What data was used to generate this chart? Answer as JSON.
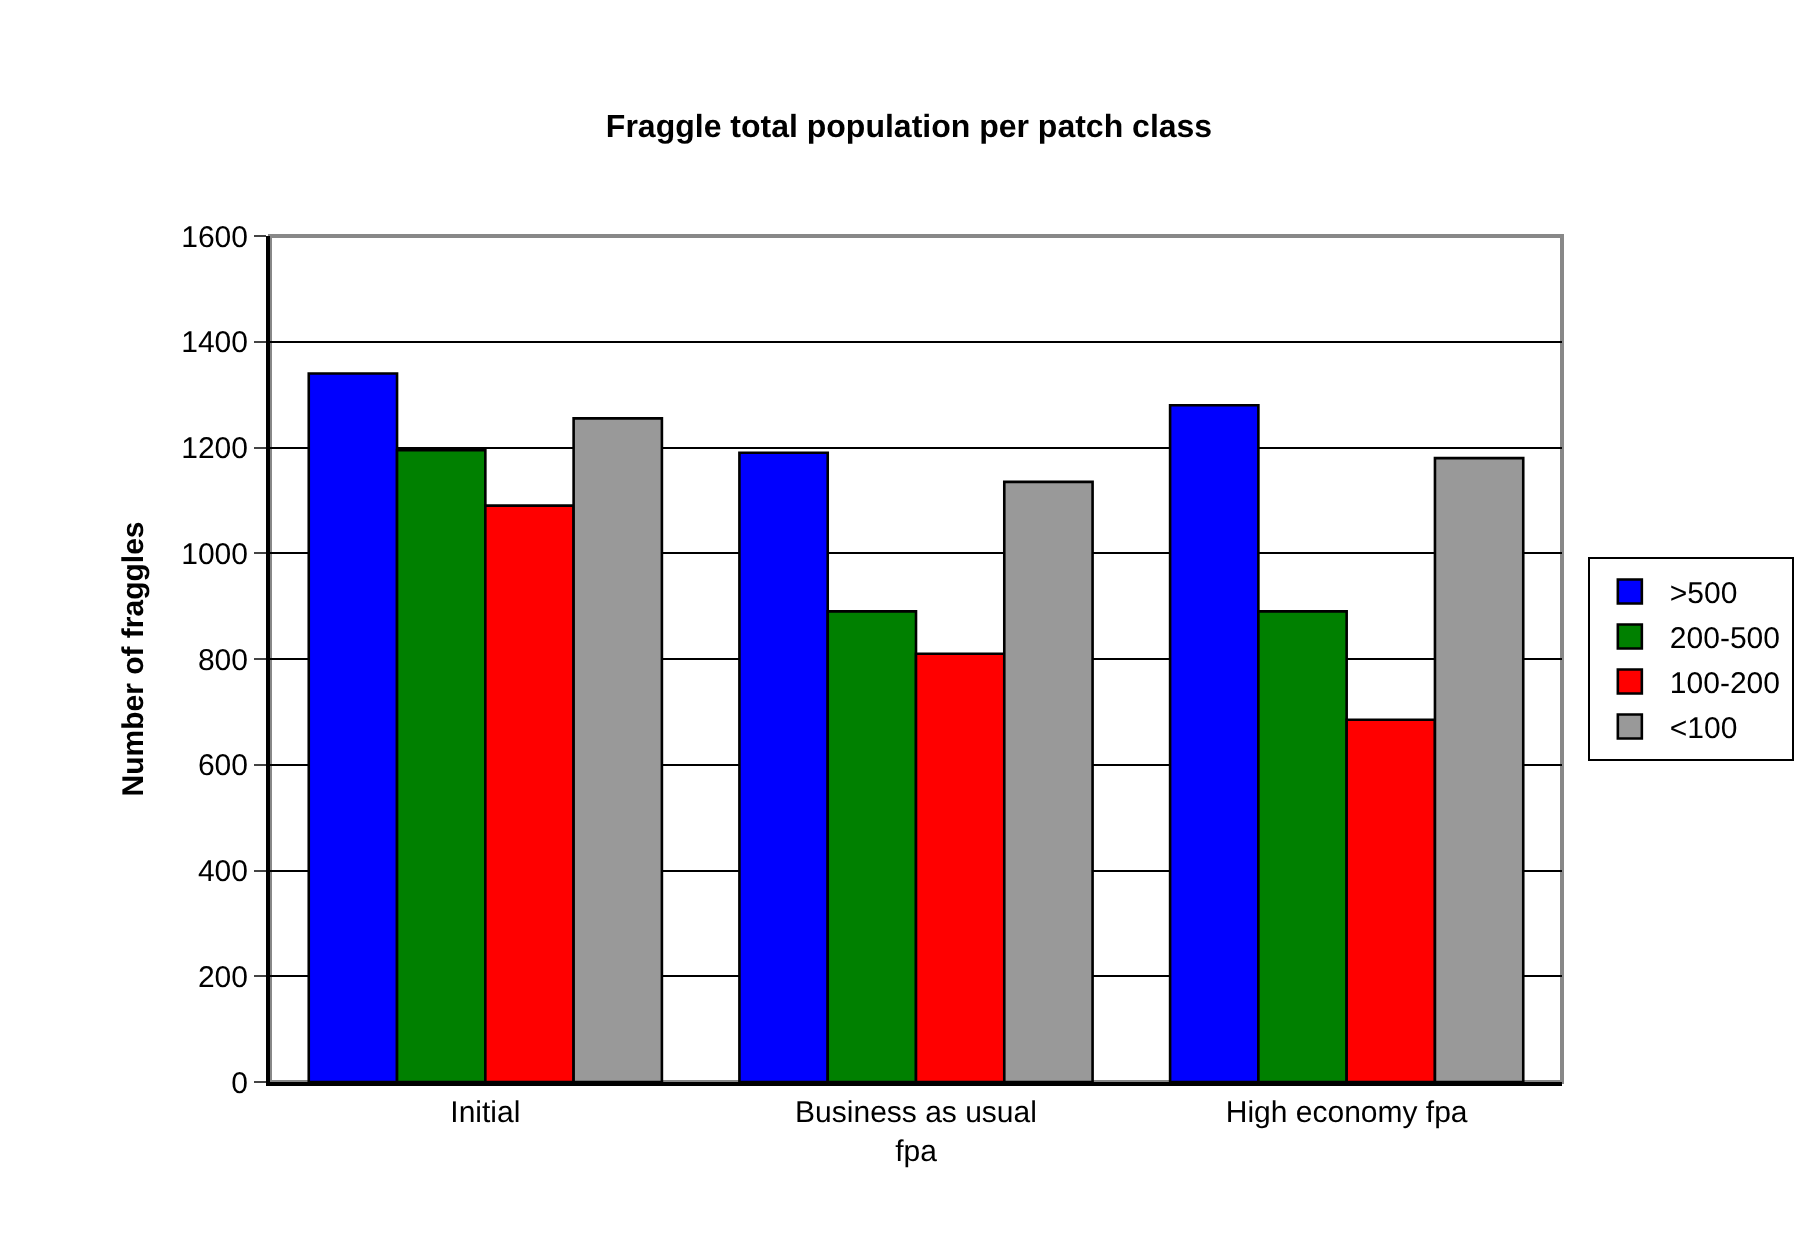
{
  "chart_data": {
    "type": "bar",
    "title": "Fraggle total population per patch class",
    "ylabel": "Number of fraggles",
    "categories": [
      "Initial",
      "Business as usual fpa",
      "High economy fpa"
    ],
    "series": [
      {
        "name": ">500",
        "color": "#0000ff",
        "values": [
          1340,
          1190,
          1280
        ]
      },
      {
        "name": "200-500",
        "color": "#008000",
        "values": [
          1195,
          890,
          890
        ]
      },
      {
        "name": "100-200",
        "color": "#ff0000",
        "values": [
          1090,
          810,
          685
        ]
      },
      {
        "name": "<100",
        "color": "#999999",
        "values": [
          1255,
          1135,
          1180
        ]
      }
    ],
    "ylim": [
      0,
      1600
    ],
    "yticks": [
      0,
      200,
      400,
      600,
      800,
      1000,
      1200,
      1400,
      1600
    ],
    "grid": "y",
    "legend": "right"
  }
}
